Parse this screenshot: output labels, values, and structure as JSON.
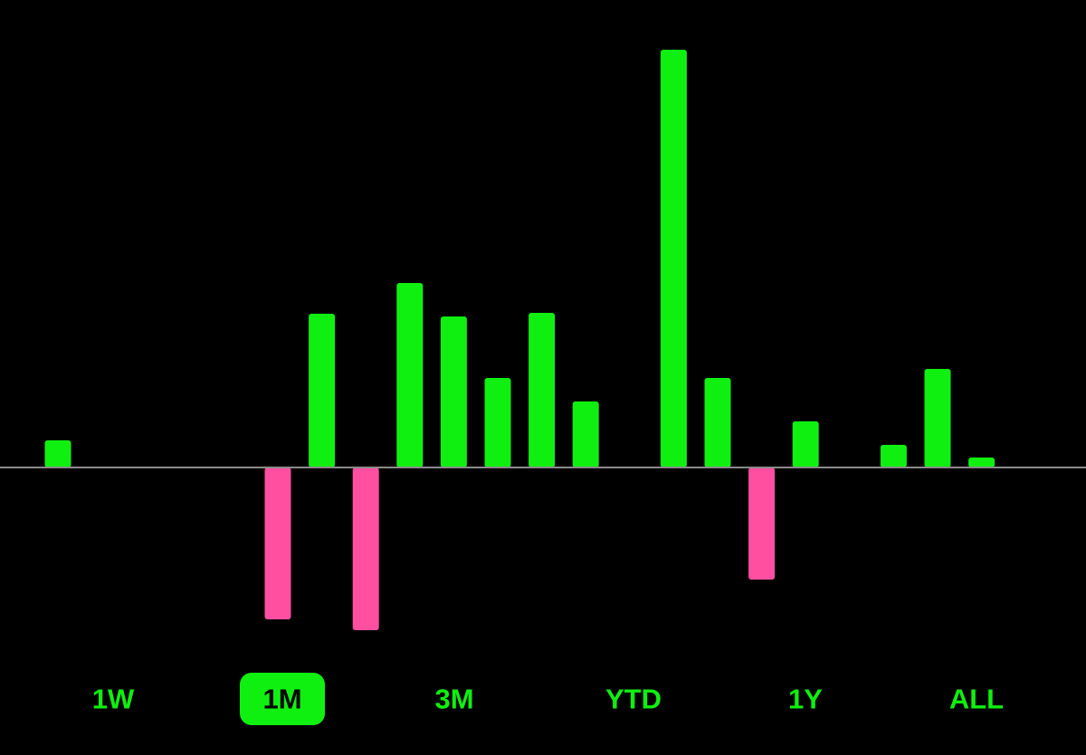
{
  "chart_data": {
    "type": "bar",
    "categories": [
      null,
      null,
      null,
      null,
      null,
      null,
      null,
      null,
      null,
      null,
      null,
      null,
      null,
      null,
      null,
      null,
      null,
      null,
      null,
      null,
      null,
      null
    ],
    "values": [
      30,
      0,
      0,
      0,
      0,
      -168,
      170,
      -180,
      204,
      167,
      99,
      171,
      73,
      0,
      462,
      99,
      -124,
      51,
      0,
      25,
      109,
      11
    ],
    "positive_color": "#10f010",
    "negative_color": "#ff4fa0",
    "baseline_color": "#8a8a8a",
    "ylim": [
      -250,
      470
    ]
  },
  "controls": {
    "periods": [
      "1W",
      "1M",
      "3M",
      "YTD",
      "1Y",
      "ALL"
    ],
    "selected": "1M"
  }
}
